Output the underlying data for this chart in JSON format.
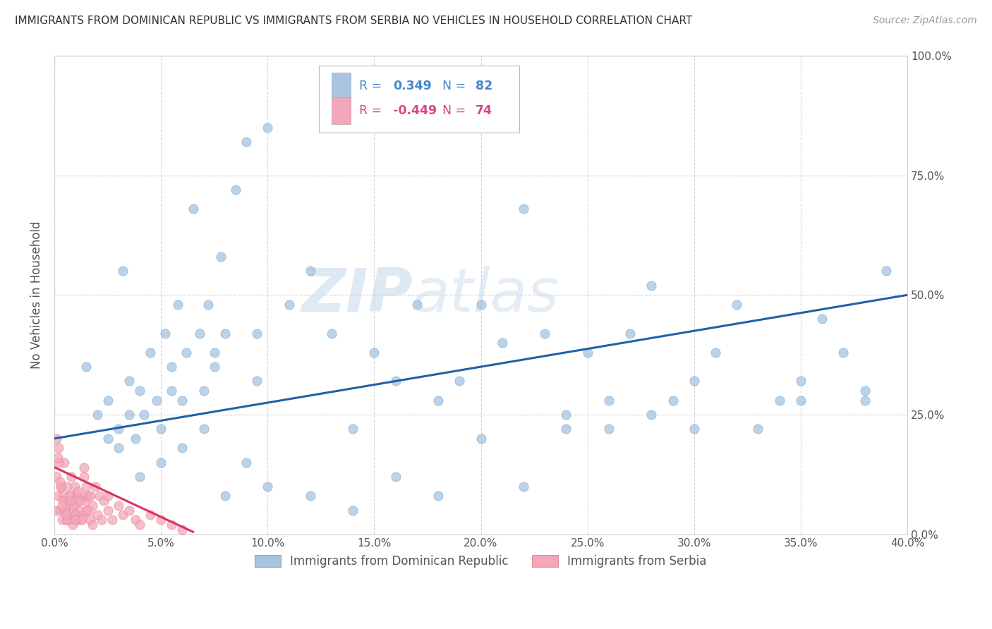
{
  "title": "IMMIGRANTS FROM DOMINICAN REPUBLIC VS IMMIGRANTS FROM SERBIA NO VEHICLES IN HOUSEHOLD CORRELATION CHART",
  "source": "Source: ZipAtlas.com",
  "ylabel": "No Vehicles in Household",
  "r_blue": 0.349,
  "n_blue": 82,
  "r_pink": -0.449,
  "n_pink": 74,
  "legend_label_blue": "Immigrants from Dominican Republic",
  "legend_label_pink": "Immigrants from Serbia",
  "blue_color": "#a8c4e0",
  "blue_edge_color": "#7aafd4",
  "pink_color": "#f4a7b9",
  "pink_edge_color": "#e888a0",
  "blue_line_color": "#2060a8",
  "pink_line_color": "#e03060",
  "text_blue_color": "#4488cc",
  "text_pink_color": "#dd4488",
  "background_color": "#ffffff",
  "grid_color": "#cccccc",
  "watermark_zip": "ZIP",
  "watermark_atlas": "atlas",
  "xmin": 0.0,
  "xmax": 40.0,
  "ymin": 0.0,
  "ymax": 100.0,
  "xticks": [
    0.0,
    5.0,
    10.0,
    15.0,
    20.0,
    25.0,
    30.0,
    35.0,
    40.0
  ],
  "yticks": [
    0.0,
    25.0,
    50.0,
    75.0,
    100.0
  ],
  "blue_line_x0": 0.0,
  "blue_line_y0": 20.0,
  "blue_line_x1": 40.0,
  "blue_line_y1": 50.0,
  "pink_line_x0": 0.0,
  "pink_line_y0": 14.0,
  "pink_line_x1": 6.5,
  "pink_line_y1": 0.5,
  "blue_scatter_x": [
    1.5,
    2.0,
    2.5,
    3.0,
    3.2,
    3.5,
    3.8,
    4.0,
    4.2,
    4.5,
    4.8,
    5.0,
    5.2,
    5.5,
    5.8,
    6.0,
    6.2,
    6.5,
    6.8,
    7.0,
    7.2,
    7.5,
    7.8,
    8.0,
    8.5,
    9.0,
    9.5,
    10.0,
    11.0,
    12.0,
    13.0,
    14.0,
    15.0,
    16.0,
    17.0,
    18.0,
    19.0,
    20.0,
    21.0,
    22.0,
    23.0,
    24.0,
    25.0,
    26.0,
    27.0,
    28.0,
    29.0,
    30.0,
    31.0,
    32.0,
    33.0,
    34.0,
    35.0,
    36.0,
    37.0,
    38.0,
    39.0,
    2.5,
    3.0,
    4.0,
    5.0,
    6.0,
    7.0,
    8.0,
    9.0,
    10.0,
    12.0,
    14.0,
    16.0,
    18.0,
    20.0,
    22.0,
    24.0,
    26.0,
    28.0,
    30.0,
    35.0,
    38.0,
    3.5,
    5.5,
    7.5,
    9.5
  ],
  "blue_scatter_y": [
    35.0,
    25.0,
    28.0,
    22.0,
    55.0,
    32.0,
    20.0,
    30.0,
    25.0,
    38.0,
    28.0,
    22.0,
    42.0,
    35.0,
    48.0,
    28.0,
    38.0,
    68.0,
    42.0,
    30.0,
    48.0,
    35.0,
    58.0,
    42.0,
    72.0,
    82.0,
    42.0,
    85.0,
    48.0,
    55.0,
    42.0,
    22.0,
    38.0,
    32.0,
    48.0,
    28.0,
    32.0,
    48.0,
    40.0,
    68.0,
    42.0,
    22.0,
    38.0,
    28.0,
    42.0,
    52.0,
    28.0,
    32.0,
    38.0,
    48.0,
    22.0,
    28.0,
    32.0,
    45.0,
    38.0,
    30.0,
    55.0,
    20.0,
    18.0,
    12.0,
    15.0,
    18.0,
    22.0,
    8.0,
    15.0,
    10.0,
    8.0,
    5.0,
    12.0,
    8.0,
    20.0,
    10.0,
    25.0,
    22.0,
    25.0,
    22.0,
    28.0,
    28.0,
    25.0,
    30.0,
    38.0,
    32.0
  ],
  "pink_scatter_x": [
    0.05,
    0.1,
    0.15,
    0.2,
    0.25,
    0.3,
    0.35,
    0.4,
    0.45,
    0.5,
    0.55,
    0.6,
    0.65,
    0.7,
    0.75,
    0.8,
    0.85,
    0.9,
    0.95,
    1.0,
    1.05,
    1.1,
    1.15,
    1.2,
    1.25,
    1.3,
    1.35,
    1.4,
    1.45,
    1.5,
    1.6,
    1.7,
    1.8,
    1.9,
    2.0,
    2.1,
    2.2,
    2.3,
    2.5,
    2.7,
    3.0,
    3.2,
    3.5,
    3.8,
    4.0,
    4.5,
    5.0,
    5.5,
    6.0,
    0.1,
    0.2,
    0.3,
    0.4,
    0.5,
    0.6,
    0.7,
    0.8,
    0.9,
    1.0,
    1.1,
    1.2,
    1.3,
    1.4,
    1.5,
    1.6,
    1.7,
    1.8,
    0.15,
    0.25,
    0.35,
    0.55,
    0.75,
    0.95,
    2.5
  ],
  "pink_scatter_y": [
    5.0,
    12.0,
    8.0,
    18.0,
    5.0,
    10.0,
    3.0,
    8.0,
    15.0,
    5.0,
    3.0,
    10.0,
    7.0,
    3.0,
    8.0,
    5.0,
    2.0,
    6.0,
    10.0,
    4.0,
    8.0,
    3.0,
    7.0,
    5.0,
    3.0,
    8.0,
    4.0,
    12.0,
    7.0,
    5.0,
    8.0,
    3.0,
    6.0,
    10.0,
    4.0,
    8.0,
    3.0,
    7.0,
    5.0,
    3.0,
    6.0,
    4.0,
    5.0,
    3.0,
    2.0,
    4.0,
    3.0,
    2.0,
    1.0,
    20.0,
    15.0,
    10.0,
    7.0,
    5.0,
    3.0,
    8.0,
    12.0,
    6.0,
    4.0,
    9.0,
    7.0,
    3.0,
    14.0,
    10.0,
    5.0,
    8.0,
    2.0,
    16.0,
    11.0,
    6.0,
    4.0,
    7.0,
    3.0,
    8.0
  ]
}
